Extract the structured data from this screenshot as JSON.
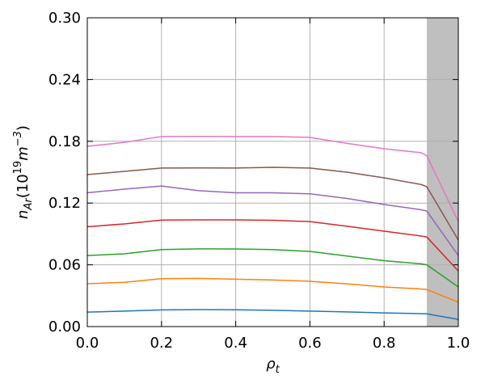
{
  "chart_data": {
    "type": "line",
    "x": [
      0,
      0.1,
      0.2,
      0.3,
      0.4,
      0.5,
      0.6,
      0.7,
      0.8,
      0.9,
      0.915,
      1.0
    ],
    "series": [
      {
        "color": "#1f77b4",
        "values": [
          0.014,
          0.015,
          0.0162,
          0.0165,
          0.0163,
          0.0158,
          0.015,
          0.0142,
          0.0133,
          0.0126,
          0.0124,
          0.007
        ]
      },
      {
        "color": "#ff7f0e",
        "values": [
          0.0416,
          0.043,
          0.0465,
          0.0468,
          0.046,
          0.0453,
          0.044,
          0.0415,
          0.0385,
          0.0365,
          0.036,
          0.0236
        ]
      },
      {
        "color": "#2ca02c",
        "values": [
          0.069,
          0.0707,
          0.0748,
          0.0755,
          0.0754,
          0.0748,
          0.073,
          0.0685,
          0.064,
          0.061,
          0.06,
          0.0385
        ]
      },
      {
        "color": "#d62728",
        "values": [
          0.097,
          0.0997,
          0.1035,
          0.1037,
          0.1037,
          0.1033,
          0.102,
          0.0975,
          0.0927,
          0.088,
          0.087,
          0.054
        ]
      },
      {
        "color": "#9467bd",
        "values": [
          0.13,
          0.1335,
          0.1365,
          0.132,
          0.13,
          0.13,
          0.129,
          0.1245,
          0.1186,
          0.1135,
          0.1123,
          0.069
        ]
      },
      {
        "color": "#8c564b",
        "values": [
          0.1476,
          0.1508,
          0.154,
          0.1541,
          0.154,
          0.1547,
          0.154,
          0.15,
          0.1445,
          0.138,
          0.1359,
          0.084
        ]
      },
      {
        "color": "#e377c2",
        "values": [
          0.1751,
          0.179,
          0.1846,
          0.1848,
          0.1846,
          0.1846,
          0.1838,
          0.178,
          0.1728,
          0.1689,
          0.166,
          0.102
        ]
      }
    ],
    "xlim": [
      0,
      1.0
    ],
    "ylim": [
      0,
      0.3
    ],
    "xticks": [
      {
        "value": 0,
        "label": "0.0"
      },
      0.2,
      0.4,
      0.6,
      0.8,
      {
        "value": 1.0,
        "label": "1.0"
      }
    ],
    "yticks": [
      {
        "value": 0,
        "label": "0.00"
      },
      0.06,
      0.12,
      0.18,
      0.24,
      {
        "value": 0.3,
        "label": "0.30"
      }
    ],
    "grid": true,
    "shade": {
      "x": [
        0.915,
        1.0
      ],
      "color": "#bfbfbf"
    },
    "xlabel": [
      {
        "text": "ρ",
        "style": "italic"
      },
      {
        "text": "t",
        "style": "italic",
        "shift": "sub"
      }
    ],
    "ylabel": [
      {
        "text": "n",
        "style": "italic"
      },
      {
        "text": "Ar",
        "style": "italic",
        "shift": "sub"
      },
      {
        "text": "(10"
      },
      {
        "text": "19",
        "shift": "super"
      },
      {
        "text": "m",
        "style": "italic"
      },
      {
        "text": "−3",
        "shift": "super",
        "style": "italic"
      },
      {
        "text": ")"
      }
    ]
  }
}
